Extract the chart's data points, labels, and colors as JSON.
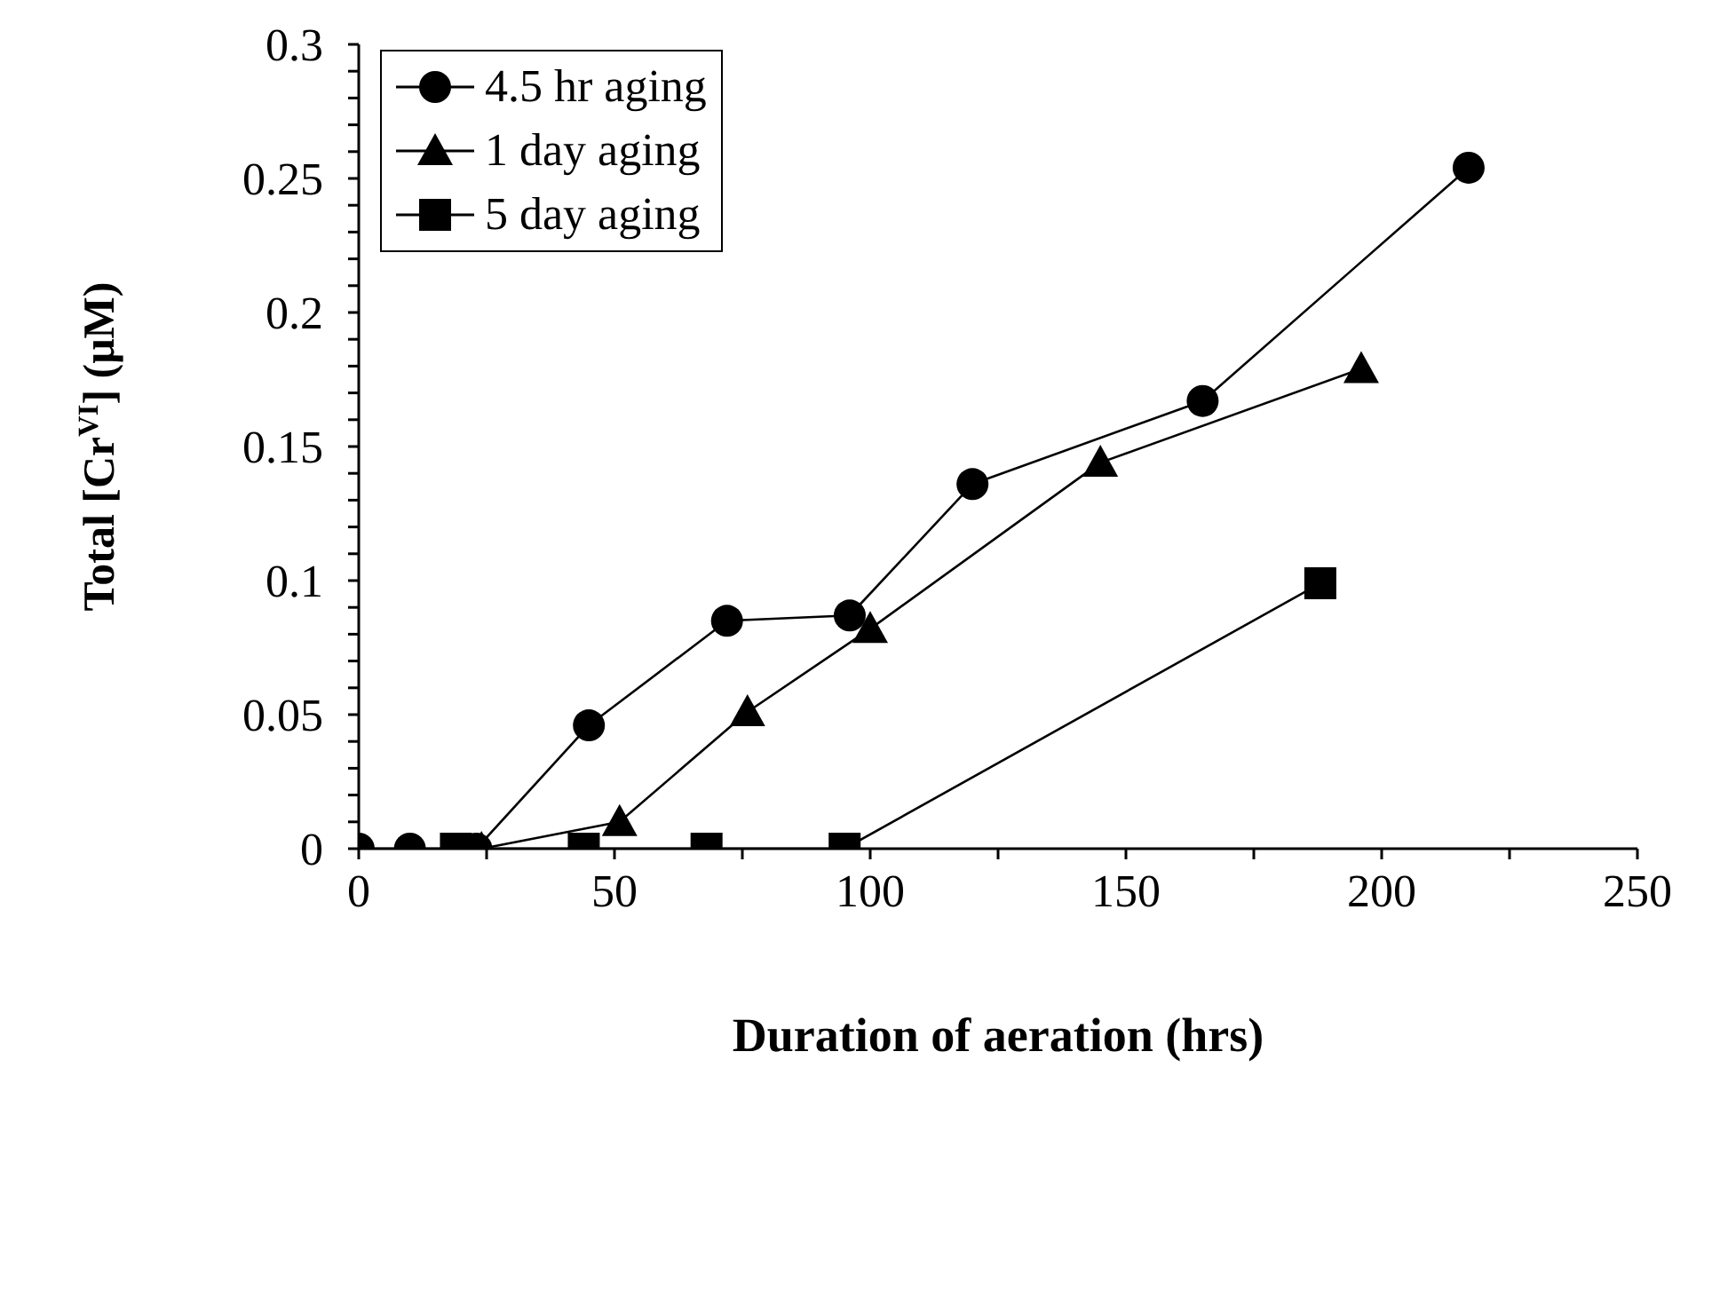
{
  "chart_data": {
    "type": "line",
    "xlabel": "Duration of aeration (hrs)",
    "ylabel": "Total [Cr$^{VI}$] (μM)",
    "xlim": [
      0,
      250
    ],
    "ylim": [
      0,
      0.3
    ],
    "xticks": [
      0,
      {
        "value": 25,
        "label": null
      },
      50,
      {
        "value": 75,
        "label": null
      },
      100,
      {
        "value": 125,
        "label": null
      },
      150,
      {
        "value": 175,
        "label": null
      },
      200,
      {
        "value": 225,
        "label": null
      },
      250
    ],
    "yticks": [
      0,
      {
        "value": 0.01,
        "label": null
      },
      {
        "value": 0.02,
        "label": null
      },
      {
        "value": 0.03,
        "label": null
      },
      {
        "value": 0.04,
        "label": null
      },
      0.05,
      {
        "value": 0.06,
        "label": null
      },
      {
        "value": 0.07,
        "label": null
      },
      {
        "value": 0.08,
        "label": null
      },
      {
        "value": 0.09,
        "label": null
      },
      0.1,
      {
        "value": 0.11,
        "label": null
      },
      {
        "value": 0.12,
        "label": null
      },
      {
        "value": 0.13,
        "label": null
      },
      {
        "value": 0.14,
        "label": null
      },
      0.15,
      {
        "value": 0.16,
        "label": null
      },
      {
        "value": 0.17,
        "label": null
      },
      {
        "value": 0.18,
        "label": null
      },
      {
        "value": 0.19,
        "label": null
      },
      0.2,
      {
        "value": 0.21,
        "label": null
      },
      {
        "value": 0.22,
        "label": null
      },
      {
        "value": 0.23,
        "label": null
      },
      {
        "value": 0.24,
        "label": null
      },
      0.25,
      {
        "value": 0.26,
        "label": null
      },
      {
        "value": 0.27,
        "label": null
      },
      {
        "value": 0.28,
        "label": null
      },
      {
        "value": 0.29,
        "label": null
      },
      0.3
    ],
    "grid": false,
    "legend": "top left",
    "line_style": "solid",
    "series": [
      {
        "name": "4.5 hr aging",
        "color": "#000000",
        "marker": "circle",
        "x": [
          0,
          10,
          23,
          45,
          72,
          96,
          120,
          165,
          217
        ],
        "values": [
          0,
          0,
          0,
          0.046,
          0.085,
          0.087,
          0.136,
          0.167,
          0.254
        ]
      },
      {
        "name": "1 day aging",
        "color": "#000000",
        "marker": "triangle",
        "x": [
          24,
          51,
          76,
          100,
          145,
          196
        ],
        "values": [
          0,
          0.01,
          0.051,
          0.082,
          0.144,
          0.179
        ]
      },
      {
        "name": "5 day aging",
        "color": "#000000",
        "marker": "square",
        "x": [
          19,
          44,
          68,
          95,
          188
        ],
        "values": [
          0,
          0,
          0,
          0,
          0.099
        ]
      }
    ]
  }
}
